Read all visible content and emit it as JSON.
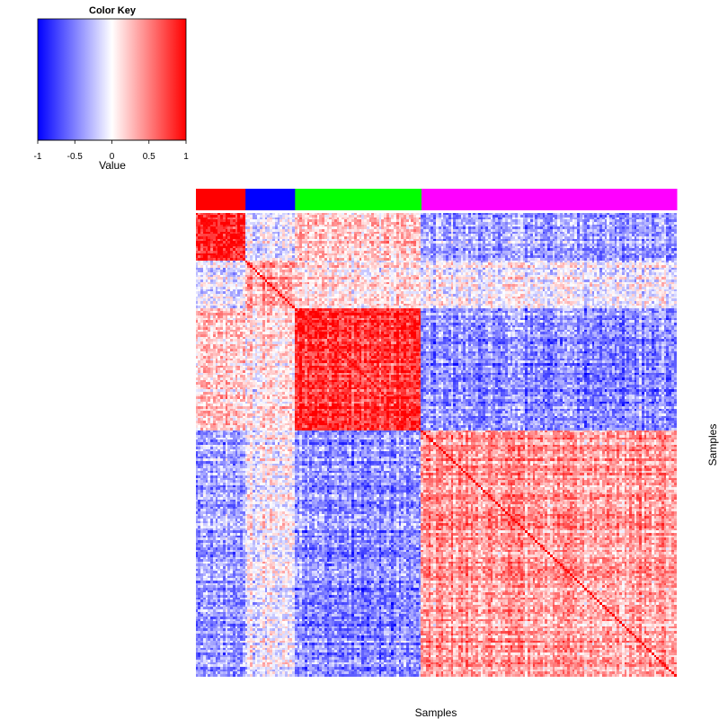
{
  "chart_data": {
    "type": "heatmap",
    "title": "",
    "xlabel": "Samples",
    "ylabel": "Samples",
    "color_key": {
      "title": "Color Key",
      "xlabel": "Value",
      "ticks": [
        "-1",
        "-0.5",
        "0",
        "0.5",
        "1"
      ],
      "range": [
        -1,
        1
      ],
      "colors": [
        "#0000ff",
        "#ffffff",
        "#ff0000"
      ]
    },
    "sample_groups": [
      {
        "color": "#ff0000",
        "count": 20
      },
      {
        "color": "#0000ff",
        "count": 20
      },
      {
        "color": "#00ff00",
        "count": 51
      },
      {
        "color": "#ff00ff",
        "count": 103
      }
    ],
    "n_samples": 194,
    "block_mean_correlation": [
      [
        0.85,
        -0.15,
        0.2,
        -0.4
      ],
      [
        -0.15,
        0.3,
        0.1,
        -0.05
      ],
      [
        0.2,
        0.1,
        0.8,
        -0.45
      ],
      [
        -0.4,
        -0.05,
        -0.45,
        0.4
      ]
    ],
    "diagonal_value": 1
  }
}
